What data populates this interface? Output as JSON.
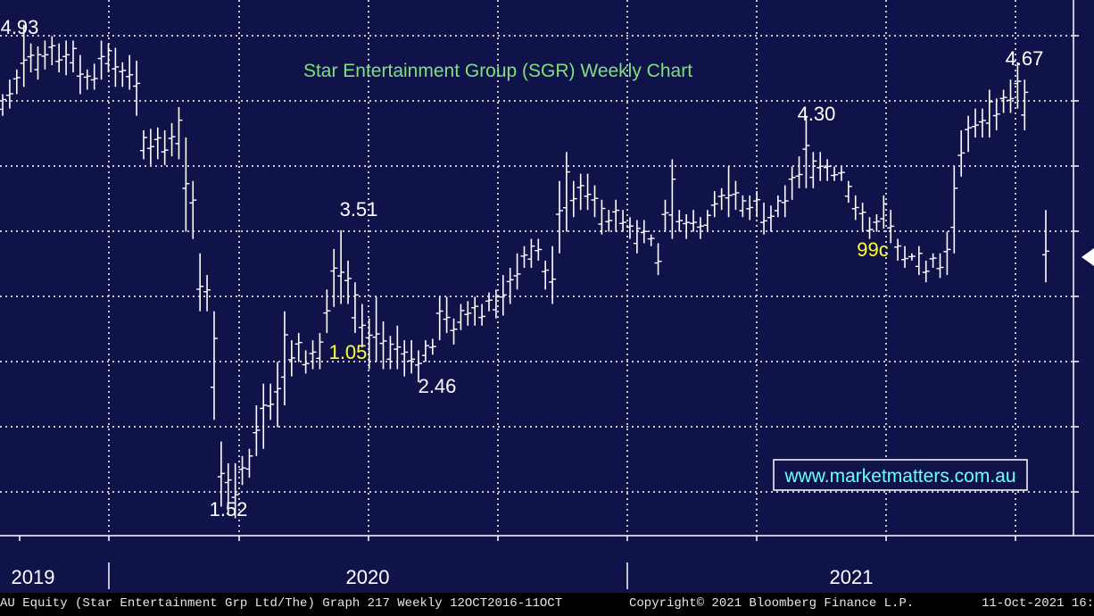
{
  "chart_data": {
    "type": "ohlc",
    "title": "Star Entertainment Group (SGR) Weekly Chart",
    "xlabel": "",
    "ylabel": "",
    "x_labels": [
      "2019",
      "2020",
      "2021"
    ],
    "ylim": [
      1.4,
      5.1
    ],
    "grid": true,
    "annotations": [
      {
        "text": "4.93",
        "color": "#ffffff",
        "x": "2019-01",
        "y": 4.93
      },
      {
        "text": "1.52",
        "color": "#ffffff",
        "x": "2020-03",
        "y": 1.52
      },
      {
        "text": "3.51",
        "color": "#ffffff",
        "x": "2020-06",
        "y": 3.51
      },
      {
        "text": "1.05",
        "color": "#ffff33",
        "x": "2020-07",
        "y": 2.6
      },
      {
        "text": "2.46",
        "color": "#ffffff",
        "x": "2020-10",
        "y": 2.46
      },
      {
        "text": "4.30",
        "color": "#ffffff",
        "x": "2021-03",
        "y": 4.3
      },
      {
        "text": "99c",
        "color": "#ffff33",
        "x": "2021-05",
        "y": 3.3
      },
      {
        "text": "4.67",
        "color": "#ffffff",
        "x": "2021-09",
        "y": 4.67
      }
    ],
    "series": [
      {
        "values": [
          [
            4.3,
            4.45
          ],
          [
            4.35,
            4.55
          ],
          [
            4.45,
            4.62
          ],
          [
            4.5,
            4.93
          ],
          [
            4.6,
            4.8
          ],
          [
            4.55,
            4.78
          ],
          [
            4.62,
            4.82
          ],
          [
            4.65,
            4.85
          ],
          [
            4.6,
            4.8
          ],
          [
            4.58,
            4.82
          ],
          [
            4.6,
            4.82
          ],
          [
            4.45,
            4.72
          ],
          [
            4.48,
            4.62
          ],
          [
            4.48,
            4.66
          ],
          [
            4.55,
            4.82
          ],
          [
            4.6,
            4.8
          ],
          [
            4.5,
            4.77
          ],
          [
            4.5,
            4.67
          ],
          [
            4.48,
            4.72
          ],
          [
            4.3,
            4.68
          ],
          [
            4.0,
            4.2
          ],
          [
            3.96,
            4.21
          ],
          [
            4.0,
            4.22
          ],
          [
            3.96,
            4.2
          ],
          [
            4.02,
            4.25
          ],
          [
            4.0,
            4.36
          ],
          [
            3.5,
            4.15
          ],
          [
            3.45,
            3.85
          ],
          [
            2.95,
            3.35
          ],
          [
            2.95,
            3.2
          ],
          [
            2.2,
            2.95
          ],
          [
            1.6,
            2.05
          ],
          [
            1.55,
            1.9
          ],
          [
            1.52,
            1.9
          ],
          [
            1.75,
            1.95
          ],
          [
            1.8,
            2.0
          ],
          [
            1.95,
            2.3
          ],
          [
            2.0,
            2.45
          ],
          [
            2.2,
            2.45
          ],
          [
            2.15,
            2.6
          ],
          [
            2.3,
            2.95
          ],
          [
            2.5,
            2.75
          ],
          [
            2.6,
            2.8
          ],
          [
            2.52,
            2.68
          ],
          [
            2.55,
            2.75
          ],
          [
            2.55,
            2.8
          ],
          [
            2.8,
            3.1
          ],
          [
            2.98,
            3.38
          ],
          [
            3.0,
            3.51
          ],
          [
            3.0,
            3.3
          ],
          [
            2.8,
            3.15
          ],
          [
            2.7,
            3.0
          ],
          [
            2.55,
            2.9
          ],
          [
            2.6,
            3.05
          ],
          [
            2.55,
            2.88
          ],
          [
            2.55,
            2.78
          ],
          [
            2.55,
            2.85
          ],
          [
            2.5,
            2.75
          ],
          [
            2.52,
            2.75
          ],
          [
            2.46,
            2.68
          ],
          [
            2.6,
            2.75
          ],
          [
            2.65,
            2.76
          ],
          [
            2.75,
            3.05
          ],
          [
            2.8,
            3.05
          ],
          [
            2.72,
            2.9
          ],
          [
            2.82,
            3.0
          ],
          [
            2.85,
            3.02
          ],
          [
            2.85,
            3.05
          ],
          [
            2.85,
            3.0
          ],
          [
            2.95,
            3.08
          ],
          [
            2.9,
            3.1
          ],
          [
            2.92,
            3.2
          ],
          [
            3.0,
            3.25
          ],
          [
            3.1,
            3.35
          ],
          [
            3.25,
            3.4
          ],
          [
            3.25,
            3.45
          ],
          [
            3.3,
            3.45
          ],
          [
            3.1,
            3.3
          ],
          [
            3.0,
            3.4
          ],
          [
            3.35,
            3.85
          ],
          [
            3.5,
            4.05
          ],
          [
            3.6,
            3.85
          ],
          [
            3.65,
            3.9
          ],
          [
            3.65,
            3.9
          ],
          [
            3.6,
            3.82
          ],
          [
            3.48,
            3.72
          ],
          [
            3.5,
            3.65
          ],
          [
            3.5,
            3.72
          ],
          [
            3.5,
            3.65
          ],
          [
            3.45,
            3.6
          ],
          [
            3.35,
            3.58
          ],
          [
            3.42,
            3.58
          ],
          [
            3.4,
            3.48
          ],
          [
            3.2,
            3.42
          ],
          [
            3.5,
            3.72
          ],
          [
            3.45,
            4.0
          ],
          [
            3.5,
            3.65
          ],
          [
            3.45,
            3.62
          ],
          [
            3.5,
            3.65
          ],
          [
            3.45,
            3.6
          ],
          [
            3.5,
            3.65
          ],
          [
            3.6,
            3.78
          ],
          [
            3.65,
            3.8
          ],
          [
            3.6,
            3.95
          ],
          [
            3.65,
            3.85
          ],
          [
            3.6,
            3.75
          ],
          [
            3.58,
            3.75
          ],
          [
            3.6,
            3.78
          ],
          [
            3.48,
            3.7
          ],
          [
            3.5,
            3.68
          ],
          [
            3.6,
            3.75
          ],
          [
            3.6,
            3.82
          ],
          [
            3.72,
            3.95
          ],
          [
            3.8,
            4.02
          ],
          [
            3.8,
            4.3
          ],
          [
            3.8,
            4.05
          ],
          [
            3.85,
            4.05
          ],
          [
            3.85,
            4.0
          ],
          [
            3.85,
            3.95
          ],
          [
            3.85,
            3.95
          ],
          [
            3.7,
            3.85
          ],
          [
            3.58,
            3.75
          ],
          [
            3.5,
            3.7
          ],
          [
            3.45,
            3.6
          ],
          [
            3.5,
            3.62
          ],
          [
            3.52,
            3.75
          ],
          [
            3.42,
            3.65
          ],
          [
            3.3,
            3.45
          ],
          [
            3.25,
            3.4
          ],
          [
            3.3,
            3.35
          ],
          [
            3.2,
            3.4
          ],
          [
            3.15,
            3.3
          ],
          [
            3.25,
            3.35
          ],
          [
            3.18,
            3.35
          ],
          [
            3.2,
            3.5
          ],
          [
            3.35,
            3.95
          ],
          [
            3.88,
            4.2
          ],
          [
            4.05,
            4.3
          ],
          [
            4.15,
            4.35
          ],
          [
            4.15,
            4.35
          ],
          [
            4.15,
            4.48
          ],
          [
            4.2,
            4.42
          ],
          [
            4.32,
            4.48
          ],
          [
            4.32,
            4.55
          ],
          [
            4.35,
            4.67
          ],
          [
            4.2,
            4.55
          ],
          null,
          null,
          [
            3.15,
            3.65
          ]
        ]
      }
    ]
  },
  "watermark": "www.marketmatters.com.au",
  "footer": {
    "left": "AU Equity (Star Entertainment Grp Ltd/The) Graph 217  Weekly 12OCT2016-11OCT",
    "center": "Copyright© 2021 Bloomberg Finance L.P.",
    "right": "11-Oct-2021 16:"
  },
  "colors": {
    "background": "#10134a",
    "bars": "#ffffff",
    "grid": "#c8c8c8",
    "title": "#7ee07e",
    "highlight": "#ffff33",
    "watermark": "#66ffff"
  }
}
